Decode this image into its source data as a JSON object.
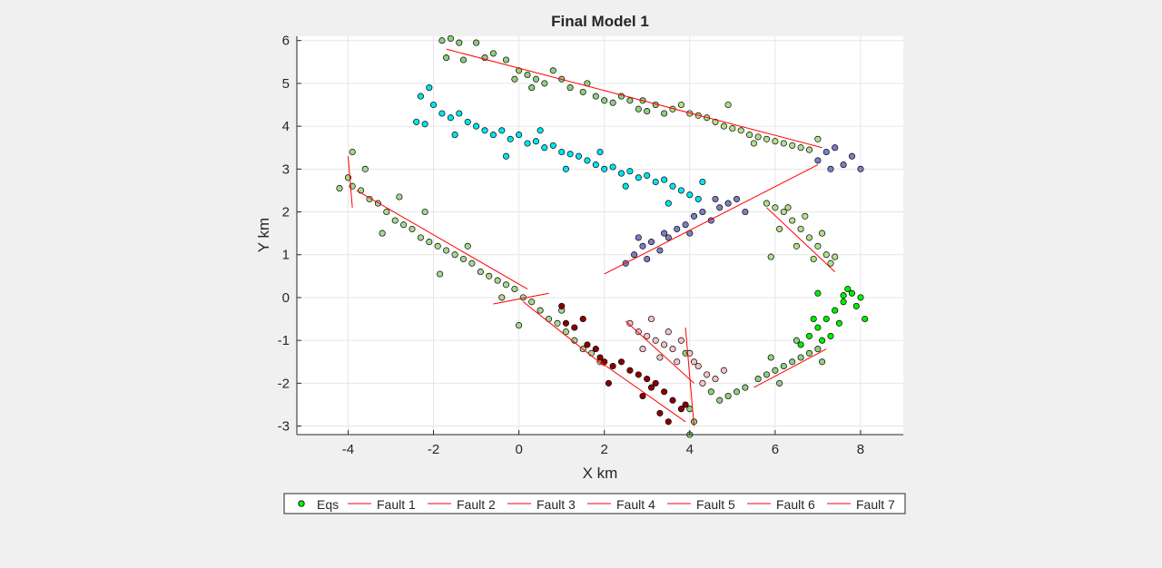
{
  "chart_data": {
    "type": "scatter",
    "title": "Final Model 1",
    "xlabel": "X km",
    "ylabel": "Y km",
    "xlim": [
      -5.2,
      9
    ],
    "ylim": [
      -3.2,
      6.1
    ],
    "xticks": [
      "-4",
      "-2",
      "0",
      "2",
      "4",
      "6",
      "8"
    ],
    "yticks": [
      "-3",
      "-2",
      "-1",
      "0",
      "1",
      "2",
      "3",
      "4",
      "5",
      "6"
    ],
    "grid": true,
    "legend_position": "bottom, horizontal",
    "legend": {
      "eqs_label": "Eqs",
      "eqs_color": "#00ff00",
      "fault_color": "#ff0000",
      "fault_labels": [
        "Fault 1",
        "Fault 2",
        "Fault 3",
        "Fault 4",
        "Fault 5",
        "Fault 6",
        "Fault 7"
      ]
    },
    "colors": {
      "axes_bg": "#ffffff",
      "figure_bg": "#f0f0f0",
      "grid": "#e6e6e6",
      "fault_line": "#ff0000",
      "marker_edge": "#000000"
    },
    "clusters": [
      {
        "color": "#8fcf7f",
        "points": [
          [
            -1.8,
            6.0
          ],
          [
            -1.6,
            6.05
          ],
          [
            -1.4,
            5.95
          ],
          [
            -1.0,
            5.95
          ],
          [
            -1.7,
            5.6
          ],
          [
            -1.3,
            5.55
          ],
          [
            -0.8,
            5.6
          ],
          [
            -0.6,
            5.7
          ],
          [
            -0.3,
            5.55
          ],
          [
            0.0,
            5.3
          ],
          [
            0.2,
            5.2
          ],
          [
            0.4,
            5.1
          ],
          [
            0.6,
            5.0
          ],
          [
            0.8,
            5.3
          ],
          [
            1.0,
            5.1
          ],
          [
            1.2,
            4.9
          ],
          [
            1.5,
            4.8
          ],
          [
            1.8,
            4.7
          ],
          [
            2.0,
            4.6
          ],
          [
            2.2,
            4.55
          ],
          [
            2.4,
            4.7
          ],
          [
            2.6,
            4.6
          ],
          [
            2.8,
            4.4
          ],
          [
            3.0,
            4.35
          ],
          [
            3.2,
            4.5
          ],
          [
            3.4,
            4.3
          ],
          [
            0.3,
            4.9
          ],
          [
            1.6,
            5.0
          ],
          [
            2.9,
            4.6
          ],
          [
            -0.1,
            5.1
          ]
        ]
      },
      {
        "color": "#b2df8a",
        "points": [
          [
            3.6,
            4.4
          ],
          [
            3.8,
            4.5
          ],
          [
            4.0,
            4.3
          ],
          [
            4.2,
            4.25
          ],
          [
            4.4,
            4.2
          ],
          [
            4.6,
            4.1
          ],
          [
            4.8,
            4.0
          ],
          [
            5.0,
            3.95
          ],
          [
            5.2,
            3.9
          ],
          [
            5.4,
            3.8
          ],
          [
            5.6,
            3.75
          ],
          [
            5.8,
            3.7
          ],
          [
            6.0,
            3.65
          ],
          [
            6.2,
            3.6
          ],
          [
            6.4,
            3.55
          ],
          [
            6.6,
            3.5
          ],
          [
            6.8,
            3.45
          ],
          [
            7.0,
            3.7
          ],
          [
            4.9,
            4.5
          ],
          [
            5.5,
            3.6
          ]
        ]
      },
      {
        "color": "#00e5ee",
        "points": [
          [
            -2.3,
            4.7
          ],
          [
            -2.1,
            4.9
          ],
          [
            -2.0,
            4.5
          ],
          [
            -1.8,
            4.3
          ],
          [
            -1.6,
            4.2
          ],
          [
            -1.4,
            4.3
          ],
          [
            -1.2,
            4.1
          ],
          [
            -1.0,
            4.0
          ],
          [
            -0.8,
            3.9
          ],
          [
            -0.6,
            3.8
          ],
          [
            -0.4,
            3.9
          ],
          [
            -0.2,
            3.7
          ],
          [
            0.0,
            3.8
          ],
          [
            0.2,
            3.6
          ],
          [
            0.4,
            3.65
          ],
          [
            0.6,
            3.5
          ],
          [
            0.8,
            3.55
          ],
          [
            1.0,
            3.4
          ],
          [
            1.2,
            3.35
          ],
          [
            1.4,
            3.3
          ],
          [
            1.6,
            3.2
          ],
          [
            1.8,
            3.1
          ],
          [
            2.0,
            3.0
          ],
          [
            2.2,
            3.05
          ],
          [
            2.4,
            2.9
          ],
          [
            2.6,
            2.95
          ],
          [
            2.8,
            2.8
          ],
          [
            3.0,
            2.85
          ],
          [
            3.2,
            2.7
          ],
          [
            3.4,
            2.75
          ],
          [
            3.6,
            2.6
          ],
          [
            3.8,
            2.5
          ],
          [
            4.0,
            2.4
          ],
          [
            4.2,
            2.3
          ],
          [
            4.3,
            2.7
          ],
          [
            -2.4,
            4.1
          ],
          [
            -1.5,
            3.8
          ],
          [
            -0.3,
            3.3
          ],
          [
            1.1,
            3.0
          ],
          [
            2.5,
            2.6
          ],
          [
            3.5,
            2.2
          ],
          [
            0.5,
            3.9
          ],
          [
            -2.2,
            4.05
          ],
          [
            1.9,
            3.4
          ]
        ]
      },
      {
        "color": "#7b7fc4",
        "points": [
          [
            2.5,
            0.8
          ],
          [
            2.7,
            1.0
          ],
          [
            2.9,
            1.2
          ],
          [
            3.1,
            1.3
          ],
          [
            3.3,
            1.1
          ],
          [
            3.5,
            1.4
          ],
          [
            3.7,
            1.6
          ],
          [
            3.9,
            1.7
          ],
          [
            4.1,
            1.9
          ],
          [
            4.3,
            2.0
          ],
          [
            4.5,
            1.8
          ],
          [
            4.7,
            2.1
          ],
          [
            4.9,
            2.2
          ],
          [
            5.1,
            2.3
          ],
          [
            5.3,
            2.0
          ],
          [
            3.0,
            0.9
          ],
          [
            3.4,
            1.5
          ],
          [
            4.0,
            1.5
          ],
          [
            4.6,
            2.3
          ],
          [
            2.8,
            1.4
          ],
          [
            7.0,
            3.2
          ],
          [
            7.2,
            3.4
          ],
          [
            7.4,
            3.5
          ],
          [
            7.6,
            3.1
          ],
          [
            7.8,
            3.3
          ],
          [
            8.0,
            3.0
          ],
          [
            7.3,
            3.0
          ]
        ]
      },
      {
        "color": "#b2df8a",
        "points": [
          [
            5.8,
            2.2
          ],
          [
            6.0,
            2.1
          ],
          [
            6.2,
            2.0
          ],
          [
            6.4,
            1.8
          ],
          [
            6.6,
            1.6
          ],
          [
            6.8,
            1.4
          ],
          [
            7.0,
            1.2
          ],
          [
            7.2,
            1.0
          ],
          [
            7.3,
            0.8
          ],
          [
            6.1,
            1.6
          ],
          [
            6.5,
            1.2
          ],
          [
            6.9,
            0.9
          ],
          [
            7.1,
            1.5
          ],
          [
            6.3,
            2.1
          ],
          [
            6.7,
            1.9
          ],
          [
            5.9,
            0.95
          ],
          [
            7.4,
            0.95
          ]
        ]
      },
      {
        "color": "#a8d890",
        "points": [
          [
            -4.2,
            2.55
          ],
          [
            -4.0,
            2.8
          ],
          [
            -3.9,
            2.6
          ],
          [
            -3.7,
            2.5
          ],
          [
            -3.5,
            2.3
          ],
          [
            -3.3,
            2.2
          ],
          [
            -3.1,
            2.0
          ],
          [
            -2.9,
            1.8
          ],
          [
            -2.7,
            1.7
          ],
          [
            -2.5,
            1.6
          ],
          [
            -2.3,
            1.4
          ],
          [
            -2.1,
            1.3
          ],
          [
            -1.9,
            1.2
          ],
          [
            -1.7,
            1.1
          ],
          [
            -1.5,
            1.0
          ],
          [
            -1.3,
            0.9
          ],
          [
            -1.1,
            0.8
          ],
          [
            -0.9,
            0.6
          ],
          [
            -0.7,
            0.5
          ],
          [
            -0.5,
            0.4
          ],
          [
            -0.3,
            0.3
          ],
          [
            -0.1,
            0.2
          ],
          [
            0.1,
            0.0
          ],
          [
            0.3,
            -0.1
          ],
          [
            0.5,
            -0.3
          ],
          [
            0.7,
            -0.5
          ],
          [
            0.9,
            -0.6
          ],
          [
            1.1,
            -0.8
          ],
          [
            1.3,
            -1.0
          ],
          [
            1.5,
            -1.2
          ],
          [
            1.7,
            -1.3
          ],
          [
            1.9,
            -1.5
          ],
          [
            -3.9,
            3.4
          ],
          [
            -3.6,
            3.0
          ],
          [
            -2.8,
            2.35
          ],
          [
            -2.2,
            2.0
          ],
          [
            -1.2,
            1.2
          ],
          [
            -0.4,
            0.0
          ],
          [
            0.0,
            -0.65
          ],
          [
            1.0,
            -0.3
          ],
          [
            -1.85,
            0.55
          ],
          [
            -3.2,
            1.5
          ]
        ]
      },
      {
        "color": "#8fcf7f",
        "points": [
          [
            3.9,
            -1.3
          ],
          [
            4.0,
            -2.6
          ],
          [
            4.1,
            -2.9
          ],
          [
            4.5,
            -2.2
          ],
          [
            4.7,
            -2.4
          ],
          [
            4.9,
            -2.3
          ],
          [
            5.1,
            -2.2
          ],
          [
            5.3,
            -2.1
          ],
          [
            5.6,
            -1.9
          ],
          [
            5.8,
            -1.8
          ],
          [
            6.0,
            -1.7
          ],
          [
            6.2,
            -1.6
          ],
          [
            6.4,
            -1.5
          ],
          [
            6.6,
            -1.4
          ],
          [
            6.8,
            -1.3
          ],
          [
            7.0,
            -1.2
          ],
          [
            4.0,
            -3.2
          ],
          [
            6.1,
            -2.0
          ],
          [
            6.5,
            -1.0
          ],
          [
            5.9,
            -1.4
          ],
          [
            7.1,
            -1.5
          ]
        ]
      },
      {
        "color": "#00ee00",
        "points": [
          [
            6.6,
            -1.1
          ],
          [
            6.8,
            -0.9
          ],
          [
            7.0,
            -0.7
          ],
          [
            7.2,
            -0.5
          ],
          [
            7.4,
            -0.3
          ],
          [
            7.6,
            -0.1
          ],
          [
            7.8,
            0.1
          ],
          [
            8.0,
            0.0
          ],
          [
            7.5,
            -0.6
          ],
          [
            7.3,
            -0.9
          ],
          [
            6.9,
            -0.5
          ],
          [
            7.7,
            0.2
          ],
          [
            7.1,
            -1.0
          ],
          [
            7.9,
            -0.2
          ],
          [
            8.1,
            -0.5
          ],
          [
            7.6,
            0.05
          ],
          [
            7.0,
            0.1
          ]
        ]
      },
      {
        "color": "#8b0000",
        "points": [
          [
            1.0,
            -0.2
          ],
          [
            1.1,
            -0.6
          ],
          [
            1.3,
            -0.7
          ],
          [
            1.5,
            -0.5
          ],
          [
            1.6,
            -1.1
          ],
          [
            1.8,
            -1.2
          ],
          [
            2.0,
            -1.5
          ],
          [
            2.2,
            -1.6
          ],
          [
            2.4,
            -1.5
          ],
          [
            2.6,
            -1.7
          ],
          [
            2.8,
            -1.8
          ],
          [
            3.0,
            -1.9
          ],
          [
            3.2,
            -2.0
          ],
          [
            3.4,
            -2.2
          ],
          [
            3.6,
            -2.4
          ],
          [
            3.8,
            -2.6
          ],
          [
            3.5,
            -2.9
          ],
          [
            3.9,
            -2.5
          ],
          [
            2.1,
            -2.0
          ],
          [
            2.9,
            -2.3
          ],
          [
            3.3,
            -2.7
          ],
          [
            1.9,
            -1.4
          ],
          [
            3.1,
            -2.1
          ]
        ]
      },
      {
        "color": "#f4c2c8",
        "points": [
          [
            2.6,
            -0.6
          ],
          [
            2.8,
            -0.8
          ],
          [
            3.0,
            -0.9
          ],
          [
            3.2,
            -1.0
          ],
          [
            3.4,
            -1.1
          ],
          [
            3.6,
            -1.2
          ],
          [
            3.8,
            -1.0
          ],
          [
            4.0,
            -1.3
          ],
          [
            4.2,
            -1.6
          ],
          [
            4.4,
            -1.8
          ],
          [
            4.6,
            -1.9
          ],
          [
            4.8,
            -1.7
          ],
          [
            3.1,
            -0.5
          ],
          [
            3.3,
            -1.4
          ],
          [
            3.7,
            -1.5
          ],
          [
            2.9,
            -1.2
          ],
          [
            4.3,
            -2.0
          ],
          [
            4.1,
            -1.5
          ],
          [
            3.5,
            -0.8
          ]
        ]
      }
    ],
    "faults": [
      {
        "name": "Fault 1",
        "x": [
          -4.0,
          -3.9
        ],
        "y": [
          3.3,
          2.1
        ]
      },
      {
        "name": "Fault 1",
        "x": [
          -3.8,
          0.2
        ],
        "y": [
          2.5,
          0.2
        ]
      },
      {
        "name": "Fault 2",
        "x": [
          0.1,
          2.0
        ],
        "y": [
          -0.1,
          -1.6
        ]
      },
      {
        "name": "Fault 2",
        "x": [
          -0.6,
          0.7
        ],
        "y": [
          -0.15,
          0.1
        ]
      },
      {
        "name": "Fault 3",
        "x": [
          -1.7,
          7.1
        ],
        "y": [
          5.8,
          3.5
        ]
      },
      {
        "name": "Fault 4",
        "x": [
          2.0,
          7.0
        ],
        "y": [
          0.55,
          3.1
        ]
      },
      {
        "name": "Fault 5",
        "x": [
          5.8,
          7.4
        ],
        "y": [
          2.1,
          0.6
        ]
      },
      {
        "name": "Fault 6",
        "x": [
          2.5,
          4.1
        ],
        "y": [
          -0.55,
          -2.0
        ]
      },
      {
        "name": "Fault 6",
        "x": [
          3.9,
          4.1
        ],
        "y": [
          -0.7,
          -3.0
        ]
      },
      {
        "name": "Fault 7",
        "x": [
          1.9,
          3.9
        ],
        "y": [
          -1.5,
          -2.9
        ]
      },
      {
        "name": "Fault 7",
        "x": [
          5.5,
          7.2
        ],
        "y": [
          -2.1,
          -1.2
        ]
      }
    ]
  }
}
